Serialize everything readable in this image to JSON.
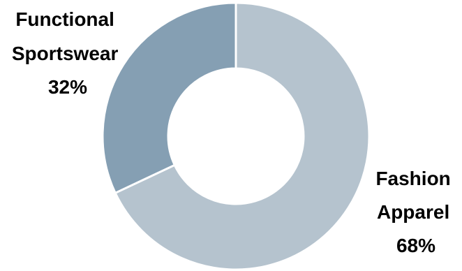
{
  "chart_data": {
    "type": "pie",
    "variant": "donut",
    "categories": [
      "Fashion Apparel",
      "Functional Sportswear"
    ],
    "values": [
      68,
      32
    ],
    "unit": "%",
    "colors": [
      "#b5c3ce",
      "#859fb3"
    ],
    "slice_border_color": "#ffffff",
    "labels": [
      {
        "lines": [
          "Fashion",
          "Apparel",
          "68%"
        ]
      },
      {
        "lines": [
          "Functional",
          "Sportswear",
          "32%"
        ]
      }
    ],
    "title": "",
    "legend": "none"
  }
}
